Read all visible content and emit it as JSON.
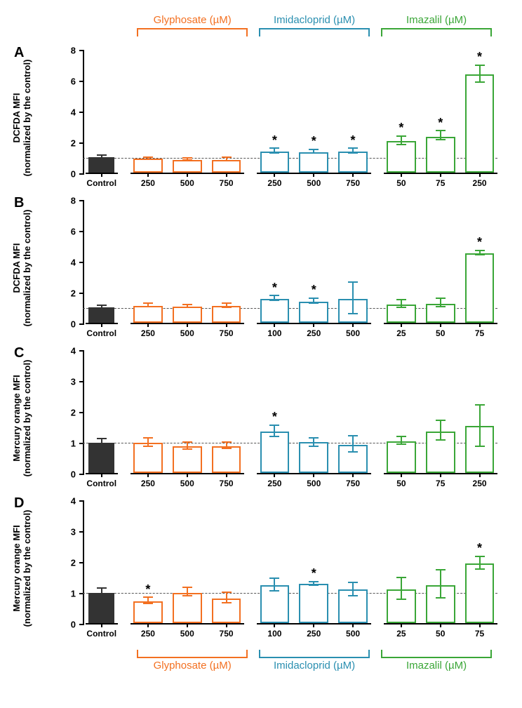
{
  "figure_width": 744,
  "figure_height": 1009,
  "colors": {
    "control": "#333333",
    "glyphosate": "#f37021",
    "imidacloprid": "#2a8fb0",
    "imazalil": "#3aa637",
    "axis": "#000000",
    "refline": "#666666",
    "bg": "#ffffff"
  },
  "groups_header": [
    {
      "label": "Glyphosate (µM)",
      "color": "#f37021"
    },
    {
      "label": "Imidacloprid (µM)",
      "color": "#2a8fb0"
    },
    {
      "label": "Imazalil (µM)",
      "color": "#3aa637"
    }
  ],
  "groups_footer": [
    {
      "label": "Glyphosate (µM)",
      "color": "#f37021"
    },
    {
      "label": "Imidacloprid (µM)",
      "color": "#2a8fb0"
    },
    {
      "label": "Imazalil (µM)",
      "color": "#3aa637"
    }
  ],
  "panels": [
    {
      "letter": "A",
      "ylabel_line1": "DCFDA MFI",
      "ylabel_line2": "(normalized by the control)",
      "ymax": 8,
      "ytick_step": 2,
      "ref": 1,
      "series": [
        {
          "name": "control",
          "color": "#333333",
          "fill": "#333333",
          "bars": [
            {
              "x": "Control",
              "y": 1.0,
              "el": 0.1,
              "eu": 0.1,
              "sig": false
            }
          ]
        },
        {
          "name": "glyphosate",
          "color": "#f37021",
          "fill": "#ffffff",
          "bars": [
            {
              "x": "250",
              "y": 0.9,
              "el": 0.08,
              "eu": 0.08,
              "sig": false
            },
            {
              "x": "500",
              "y": 0.85,
              "el": 0.08,
              "eu": 0.08,
              "sig": false
            },
            {
              "x": "750",
              "y": 0.85,
              "el": 0.1,
              "eu": 0.1,
              "sig": false
            }
          ]
        },
        {
          "name": "imidacloprid",
          "color": "#2a8fb0",
          "fill": "#ffffff",
          "bars": [
            {
              "x": "250",
              "y": 1.4,
              "el": 0.15,
              "eu": 0.15,
              "sig": true
            },
            {
              "x": "500",
              "y": 1.35,
              "el": 0.12,
              "eu": 0.12,
              "sig": true
            },
            {
              "x": "750",
              "y": 1.4,
              "el": 0.15,
              "eu": 0.15,
              "sig": true
            }
          ]
        },
        {
          "name": "imazalil",
          "color": "#3aa637",
          "fill": "#ffffff",
          "bars": [
            {
              "x": "50",
              "y": 2.05,
              "el": 0.25,
              "eu": 0.3,
              "sig": true
            },
            {
              "x": "75",
              "y": 2.35,
              "el": 0.25,
              "eu": 0.35,
              "sig": true
            },
            {
              "x": "250",
              "y": 6.45,
              "el": 0.55,
              "eu": 0.55,
              "sig": true
            }
          ]
        }
      ]
    },
    {
      "letter": "B",
      "ylabel_line1": "DCFDA MFI",
      "ylabel_line2": "(normalized by the control)",
      "ymax": 8,
      "ytick_step": 2,
      "ref": 1,
      "series": [
        {
          "name": "control",
          "color": "#333333",
          "fill": "#333333",
          "bars": [
            {
              "x": "Control",
              "y": 1.0,
              "el": 0.12,
              "eu": 0.12,
              "sig": false
            }
          ]
        },
        {
          "name": "glyphosate",
          "color": "#f37021",
          "fill": "#ffffff",
          "bars": [
            {
              "x": "250",
              "y": 1.1,
              "el": 0.1,
              "eu": 0.12,
              "sig": false
            },
            {
              "x": "500",
              "y": 1.05,
              "el": 0.08,
              "eu": 0.1,
              "sig": false
            },
            {
              "x": "750",
              "y": 1.1,
              "el": 0.12,
              "eu": 0.15,
              "sig": false
            }
          ]
        },
        {
          "name": "imidacloprid",
          "color": "#2a8fb0",
          "fill": "#ffffff",
          "bars": [
            {
              "x": "100",
              "y": 1.55,
              "el": 0.12,
              "eu": 0.18,
              "sig": true
            },
            {
              "x": "250",
              "y": 1.4,
              "el": 0.18,
              "eu": 0.18,
              "sig": true
            },
            {
              "x": "500",
              "y": 1.55,
              "el": 1.0,
              "eu": 1.05,
              "sig": false
            }
          ]
        },
        {
          "name": "imazalil",
          "color": "#3aa637",
          "fill": "#ffffff",
          "bars": [
            {
              "x": "25",
              "y": 1.2,
              "el": 0.25,
              "eu": 0.25,
              "sig": false
            },
            {
              "x": "50",
              "y": 1.25,
              "el": 0.25,
              "eu": 0.3,
              "sig": false
            },
            {
              "x": "75",
              "y": 4.55,
              "el": 0.15,
              "eu": 0.15,
              "sig": true
            }
          ]
        }
      ]
    },
    {
      "letter": "C",
      "ylabel_line1": "Mercury orange MFI",
      "ylabel_line2": "(normalized by the control)",
      "ymax": 4,
      "ytick_step": 1,
      "ref": 1,
      "series": [
        {
          "name": "control",
          "color": "#333333",
          "fill": "#333333",
          "bars": [
            {
              "x": "Control",
              "y": 1.0,
              "el": 0.1,
              "eu": 0.1,
              "sig": false
            }
          ]
        },
        {
          "name": "glyphosate",
          "color": "#f37021",
          "fill": "#ffffff",
          "bars": [
            {
              "x": "250",
              "y": 0.98,
              "el": 0.12,
              "eu": 0.15,
              "sig": false
            },
            {
              "x": "500",
              "y": 0.87,
              "el": 0.1,
              "eu": 0.12,
              "sig": false
            },
            {
              "x": "750",
              "y": 0.88,
              "el": 0.1,
              "eu": 0.1,
              "sig": false
            }
          ]
        },
        {
          "name": "imidacloprid",
          "color": "#2a8fb0",
          "fill": "#ffffff",
          "bars": [
            {
              "x": "250",
              "y": 1.35,
              "el": 0.18,
              "eu": 0.2,
              "sig": true
            },
            {
              "x": "500",
              "y": 1.02,
              "el": 0.18,
              "eu": 0.1,
              "sig": false
            },
            {
              "x": "750",
              "y": 0.92,
              "el": 0.25,
              "eu": 0.28,
              "sig": false
            }
          ]
        },
        {
          "name": "imazalil",
          "color": "#3aa637",
          "fill": "#ffffff",
          "bars": [
            {
              "x": "50",
              "y": 1.03,
              "el": 0.1,
              "eu": 0.15,
              "sig": false
            },
            {
              "x": "75",
              "y": 1.35,
              "el": 0.3,
              "eu": 0.35,
              "sig": false
            },
            {
              "x": "250",
              "y": 1.55,
              "el": 0.7,
              "eu": 0.65,
              "sig": false
            }
          ]
        }
      ]
    },
    {
      "letter": "D",
      "ylabel_line1": "Mercury orange MFI",
      "ylabel_line2": "(normalized by the control)",
      "ymax": 4,
      "ytick_step": 1,
      "ref": 1,
      "series": [
        {
          "name": "control",
          "color": "#333333",
          "fill": "#333333",
          "bars": [
            {
              "x": "Control",
              "y": 1.0,
              "el": 0.12,
              "eu": 0.12,
              "sig": false
            }
          ]
        },
        {
          "name": "glyphosate",
          "color": "#f37021",
          "fill": "#ffffff",
          "bars": [
            {
              "x": "250",
              "y": 0.72,
              "el": 0.1,
              "eu": 0.1,
              "sig": true
            },
            {
              "x": "500",
              "y": 1.0,
              "el": 0.12,
              "eu": 0.14,
              "sig": false
            },
            {
              "x": "750",
              "y": 0.8,
              "el": 0.15,
              "eu": 0.18,
              "sig": false
            }
          ]
        },
        {
          "name": "imidacloprid",
          "color": "#2a8fb0",
          "fill": "#ffffff",
          "bars": [
            {
              "x": "100",
              "y": 1.25,
              "el": 0.22,
              "eu": 0.2,
              "sig": false
            },
            {
              "x": "250",
              "y": 1.28,
              "el": 0.06,
              "eu": 0.06,
              "sig": true
            },
            {
              "x": "500",
              "y": 1.1,
              "el": 0.22,
              "eu": 0.22,
              "sig": false
            }
          ]
        },
        {
          "name": "imazalil",
          "color": "#3aa637",
          "fill": "#ffffff",
          "bars": [
            {
              "x": "25",
              "y": 1.1,
              "el": 0.35,
              "eu": 0.38,
              "sig": false
            },
            {
              "x": "50",
              "y": 1.25,
              "el": 0.45,
              "eu": 0.48,
              "sig": false
            },
            {
              "x": "75",
              "y": 1.95,
              "el": 0.2,
              "eu": 0.22,
              "sig": true
            }
          ]
        }
      ]
    }
  ]
}
